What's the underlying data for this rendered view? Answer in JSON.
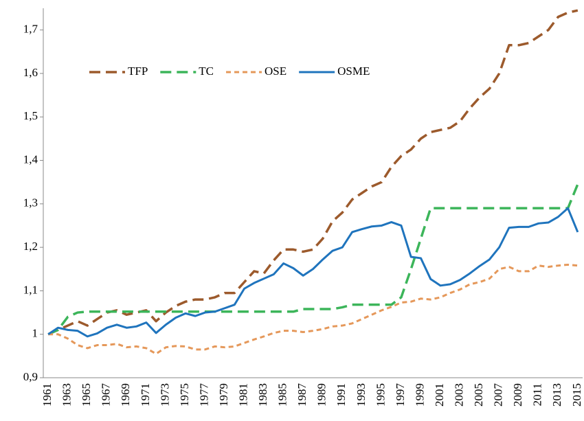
{
  "chart_data": {
    "type": "line",
    "categories": [
      "1961",
      null,
      "1963",
      null,
      "1965",
      null,
      "1967",
      null,
      "1969",
      null,
      "1971",
      null,
      "1973",
      null,
      "1975",
      null,
      "1977",
      null,
      "1979",
      null,
      "1981",
      null,
      "1983",
      null,
      "1985",
      null,
      "1987",
      null,
      "1989",
      null,
      "1991",
      null,
      "1993",
      null,
      "1995",
      null,
      "1997",
      null,
      "1999",
      null,
      "2001",
      null,
      "2003",
      null,
      "2005",
      null,
      "2007",
      null,
      "2009",
      null,
      "2011",
      null,
      "2013",
      null,
      "2015"
    ],
    "ylim": [
      0.9,
      1.75
    ],
    "yticks": [
      {
        "value": 0.9,
        "label": "0,9"
      },
      1,
      {
        "value": 1.1,
        "label": "1,1"
      },
      {
        "value": 1.2,
        "label": "1,2"
      },
      {
        "value": 1.3,
        "label": "1,3"
      },
      {
        "value": 1.4,
        "label": "1,4"
      },
      {
        "value": 1.5,
        "label": "1,5"
      },
      {
        "value": 1.6,
        "label": "1,6"
      },
      {
        "value": 1.7,
        "label": "1,7"
      }
    ],
    "grid": false,
    "series": [
      {
        "name": "TFP",
        "color": "#9c5a2c",
        "line_style": "long-dash",
        "values": [
          1.0,
          1.01,
          1.02,
          1.03,
          1.02,
          1.035,
          1.05,
          1.055,
          1.045,
          1.05,
          1.055,
          1.03,
          1.05,
          1.065,
          1.075,
          1.08,
          1.08,
          1.085,
          1.095,
          1.095,
          1.12,
          1.145,
          1.14,
          1.17,
          1.195,
          1.195,
          1.19,
          1.195,
          1.22,
          1.26,
          1.28,
          1.31,
          1.325,
          1.34,
          1.35,
          1.385,
          1.41,
          1.425,
          1.45,
          1.465,
          1.47,
          1.475,
          1.49,
          1.52,
          1.545,
          1.565,
          1.6,
          1.665,
          1.665,
          1.67,
          1.685,
          1.7,
          1.73,
          1.74,
          1.745
        ]
      },
      {
        "name": "TC",
        "color": "#3cb55a",
        "line_style": "long-dash",
        "values": [
          1.0,
          1.01,
          1.04,
          1.05,
          1.052,
          1.052,
          1.052,
          1.052,
          1.052,
          1.052,
          1.052,
          1.052,
          1.052,
          1.052,
          1.052,
          1.052,
          1.052,
          1.052,
          1.052,
          1.052,
          1.052,
          1.052,
          1.052,
          1.052,
          1.052,
          1.052,
          1.058,
          1.058,
          1.058,
          1.058,
          1.062,
          1.068,
          1.068,
          1.068,
          1.068,
          1.068,
          1.085,
          1.15,
          1.22,
          1.29,
          1.29,
          1.29,
          1.29,
          1.29,
          1.29,
          1.29,
          1.29,
          1.29,
          1.29,
          1.29,
          1.29,
          1.29,
          1.29,
          1.29,
          1.345
        ]
      },
      {
        "name": "OSE",
        "color": "#e5985a",
        "line_style": "short-dash",
        "values": [
          1.0,
          1.0,
          0.99,
          0.975,
          0.968,
          0.975,
          0.975,
          0.978,
          0.97,
          0.972,
          0.968,
          0.955,
          0.97,
          0.973,
          0.972,
          0.965,
          0.965,
          0.972,
          0.97,
          0.972,
          0.98,
          0.988,
          0.995,
          1.003,
          1.008,
          1.008,
          1.005,
          1.008,
          1.012,
          1.018,
          1.02,
          1.025,
          1.035,
          1.045,
          1.055,
          1.063,
          1.073,
          1.075,
          1.082,
          1.08,
          1.085,
          1.095,
          1.103,
          1.115,
          1.12,
          1.128,
          1.15,
          1.155,
          1.145,
          1.145,
          1.158,
          1.155,
          1.158,
          1.16,
          1.158
        ]
      },
      {
        "name": "OSME",
        "color": "#1f74bd",
        "line_style": "solid",
        "values": [
          1.0,
          1.015,
          1.01,
          1.008,
          0.995,
          1.002,
          1.015,
          1.022,
          1.015,
          1.018,
          1.027,
          1.003,
          1.022,
          1.038,
          1.048,
          1.042,
          1.05,
          1.052,
          1.06,
          1.068,
          1.105,
          1.118,
          1.128,
          1.138,
          1.163,
          1.152,
          1.135,
          1.15,
          1.172,
          1.192,
          1.2,
          1.235,
          1.242,
          1.248,
          1.25,
          1.258,
          1.25,
          1.178,
          1.175,
          1.127,
          1.112,
          1.115,
          1.125,
          1.14,
          1.157,
          1.172,
          1.2,
          1.245,
          1.247,
          1.247,
          1.255,
          1.257,
          1.27,
          1.29,
          1.235
        ]
      }
    ]
  }
}
